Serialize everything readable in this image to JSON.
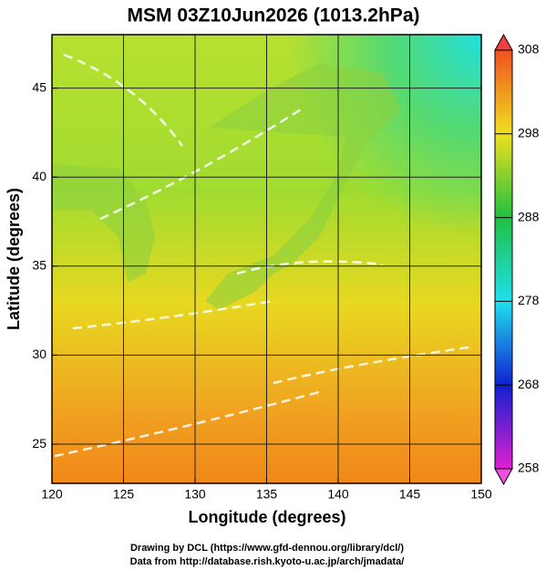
{
  "chart_data": {
    "type": "map",
    "title": "MSM 03Z10Jun2026 (1013.2hPa)",
    "xlabel": "Longitude (degrees)",
    "ylabel": "Latitude  (degrees)",
    "xlim": [
      120,
      150
    ],
    "xticks": [
      120,
      125,
      130,
      135,
      140,
      145,
      150
    ],
    "ylim": [
      22.8,
      48.0
    ],
    "yticks": [
      25,
      30,
      35,
      40,
      45
    ],
    "grid": true,
    "colorbar": {
      "lim": [
        258,
        308
      ],
      "ticks": [
        258,
        268,
        278,
        288,
        298,
        308
      ],
      "colors": [
        "#e020d0",
        "#1020d0",
        "#20e0f0",
        "#20c040",
        "#f0e020",
        "#f05020"
      ]
    },
    "credits": [
      "Drawing by DCL (https://www.gfd-dennou.org/library/dcl/)",
      "Data from http://database.rish.kyoto-u.ac.jp/arch/jmadata/"
    ]
  }
}
